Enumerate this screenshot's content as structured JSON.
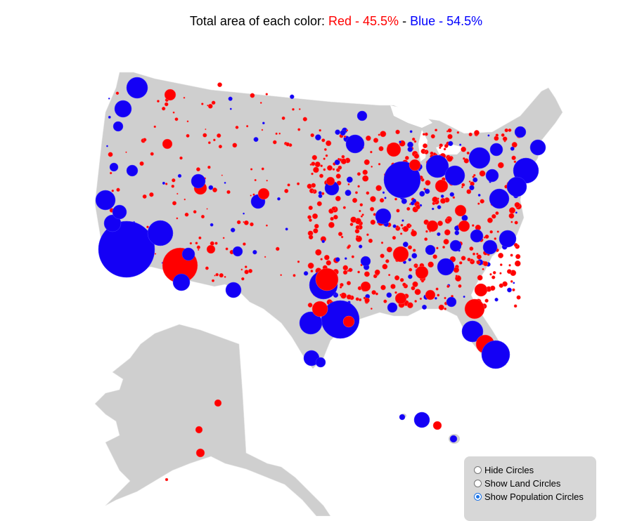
{
  "title": {
    "prefix": "Total area of each color: ",
    "red_part": "Red - 45.5%",
    "separator": " - ",
    "blue_part": "Blue - 54.5%"
  },
  "colors": {
    "red": "#ff0000",
    "blue": "#1400f5",
    "land": "#cfcfcf",
    "border": "#e6e6e6"
  },
  "controls": {
    "options": [
      {
        "label": "Hide Circles",
        "selected": false
      },
      {
        "label": "Show Land Circles",
        "selected": false
      },
      {
        "label": "Show Population Circles",
        "selected": true
      }
    ]
  }
}
